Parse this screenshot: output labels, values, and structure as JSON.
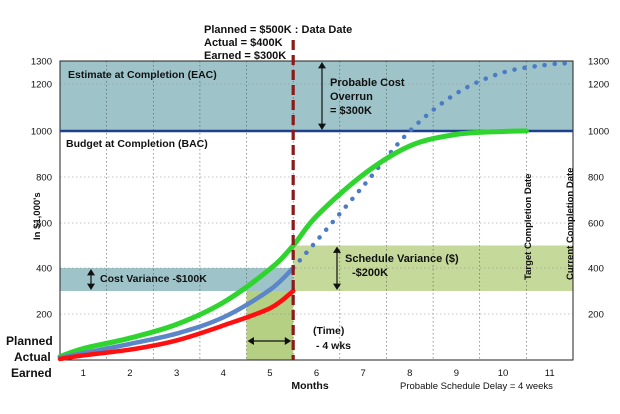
{
  "chart_data": {
    "type": "line",
    "x_ticks": [
      1,
      2,
      3,
      4,
      5,
      6,
      7,
      8,
      9,
      10,
      11
    ],
    "y_ticks": [
      200,
      400,
      600,
      800,
      1000,
      1200,
      1300
    ],
    "xlim": [
      0.5,
      11.5
    ],
    "ylim": [
      0,
      1300
    ],
    "xlabel": "Months",
    "ylabel": "In $1,000's",
    "grid": true,
    "data_date": 5.5,
    "budget_at_completion": 1000,
    "estimate_at_completion": 1300,
    "cost_variance_band": [
      300,
      400
    ],
    "schedule_variance_band": [
      300,
      500
    ],
    "schedule_delay_band": [
      4.5,
      5.5
    ],
    "series": [
      {
        "name": "Planned",
        "color": "#2fd42f",
        "style": "solid",
        "x": [
          0.5,
          1,
          2,
          3,
          4,
          5,
          5.5,
          6,
          7,
          8,
          9,
          10,
          10.5
        ],
        "y": [
          15,
          50,
          95,
          155,
          250,
          395,
          500,
          630,
          810,
          935,
          985,
          998,
          1000
        ]
      },
      {
        "name": "Actual",
        "color": "#5b86c8",
        "style": "solid",
        "x": [
          0.5,
          1,
          2,
          3,
          4,
          5,
          5.5
        ],
        "y": [
          10,
          30,
          70,
          115,
          185,
          305,
          400
        ]
      },
      {
        "name": "Earned",
        "color": "#ff1010",
        "style": "solid",
        "x": [
          0.5,
          1,
          2,
          3,
          4,
          5,
          5.5
        ],
        "y": [
          5,
          20,
          45,
          85,
          150,
          225,
          300
        ]
      },
      {
        "name": "Forecast",
        "color": "#4a7bc4",
        "style": "dotted",
        "x": [
          5.5,
          6,
          7,
          8,
          9,
          10,
          11,
          11.5
        ],
        "y": [
          400,
          520,
          760,
          1000,
          1160,
          1250,
          1285,
          1290
        ]
      }
    ]
  },
  "labels": {
    "data_date_1": "Planned = $500K : Data Date",
    "data_date_2": "Actual    = $400K",
    "data_date_3": "Earned   = $300K",
    "eac": "Estimate at Completion (EAC)",
    "bac": "Budget at Completion (BAC)",
    "overrun_1": "Probable Cost",
    "overrun_2": "Overrun",
    "overrun_3": "= $300K",
    "cost_variance": "Cost Variance -$100K",
    "schedule_variance_1": "Schedule Variance ($)",
    "schedule_variance_2": "-$200K",
    "time_1": "(Time)",
    "time_2": "- 4 wks",
    "target_completion": "Target Completion Date",
    "current_completion": "Current Completion Date",
    "schedule_delay": "Probable Schedule Delay = 4 weeks",
    "legend_planned": "Planned",
    "legend_actual": "Actual",
    "legend_earned": "Earned"
  },
  "colors": {
    "eac_band": "#9ec4c9",
    "cost_band": "#9ec4c9",
    "schedule_band": "#c5d99a",
    "delay_band": "#b5cf83",
    "bac_line": "#1f3f8f",
    "data_date_line": "#8b1a1a",
    "legend_planned": "#2fb52f",
    "legend_actual": "#4a7bc4",
    "legend_earned": "#e81010"
  }
}
